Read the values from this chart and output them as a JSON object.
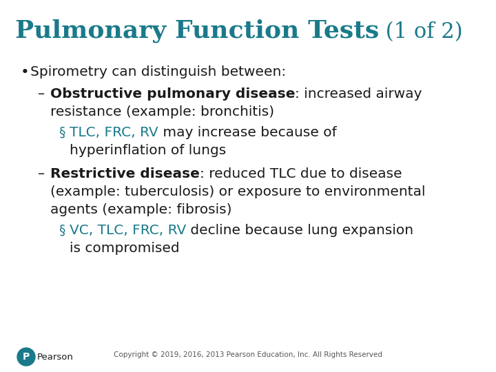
{
  "title_main": "Pulmonary Function Tests",
  "title_suffix": " (1 of 2)",
  "title_color": "#1a7a8a",
  "title_fontsize": 26,
  "body_color": "#1a1a1a",
  "teal_color": "#1a7a8a",
  "background_color": "#ffffff",
  "footer_text": "Copyright © 2019, 2016, 2013 Pearson Education, Inc. All Rights Reserved"
}
